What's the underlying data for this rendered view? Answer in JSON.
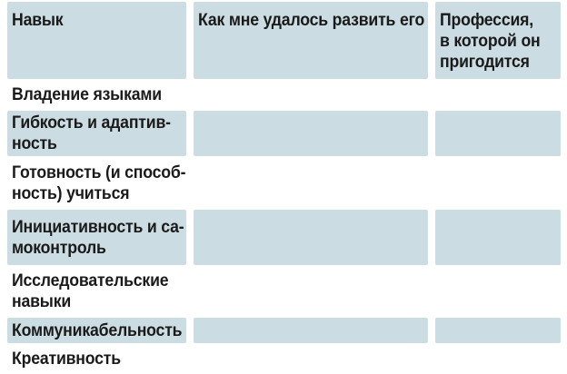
{
  "table": {
    "header": {
      "skill": "Навык",
      "development": "Как мне удалось развить его",
      "profession": "Профессия,\nв которой он\nпригодится"
    },
    "rows": [
      {
        "skill": "Владение языками",
        "development": "",
        "profession": "",
        "shaded": false
      },
      {
        "skill": "Гибкость и адаптив-\nность",
        "development": "",
        "profession": "",
        "shaded": true
      },
      {
        "skill": "Готовность (и способ-\nность) учиться",
        "development": "",
        "profession": "",
        "shaded": false
      },
      {
        "skill": "Инициативность и са-\nмоконтроль",
        "development": "",
        "profession": "",
        "shaded": true
      },
      {
        "skill": "Исследовательские\nнавыки",
        "development": "",
        "profession": "",
        "shaded": false
      },
      {
        "skill": "Коммуникабельность",
        "development": "",
        "profession": "",
        "shaded": true
      },
      {
        "skill": "Креативность",
        "development": "",
        "profession": "",
        "shaded": false
      }
    ]
  },
  "colors": {
    "row_shade": "#cbdde3",
    "text": "#1a1a1a",
    "background": "#ffffff"
  }
}
